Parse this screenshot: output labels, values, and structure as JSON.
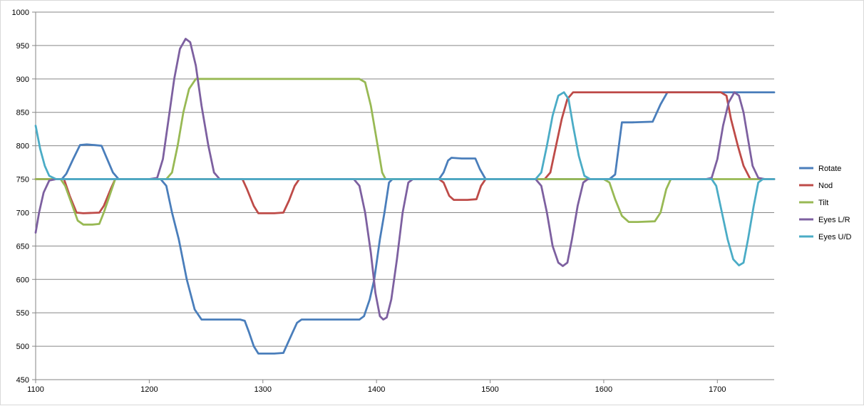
{
  "chart_data": {
    "type": "line",
    "title": "",
    "xlabel": "",
    "ylabel": "",
    "xlim": [
      1100,
      1750
    ],
    "ylim": [
      450,
      1000
    ],
    "x_ticks": [
      1100,
      1200,
      1300,
      1400,
      1500,
      1600,
      1700
    ],
    "y_ticks": [
      450,
      500,
      550,
      600,
      650,
      700,
      750,
      800,
      850,
      900,
      950,
      1000
    ],
    "grid": "horizontal",
    "legend_position": "right",
    "series": [
      {
        "name": "Rotate",
        "color": "#4a7ebb",
        "points": [
          [
            1100,
            750
          ],
          [
            1123,
            750
          ],
          [
            1127,
            758
          ],
          [
            1133,
            780
          ],
          [
            1139,
            801
          ],
          [
            1145,
            802
          ],
          [
            1152,
            801
          ],
          [
            1158,
            800
          ],
          [
            1163,
            780
          ],
          [
            1168,
            760
          ],
          [
            1173,
            750
          ],
          [
            1210,
            750
          ],
          [
            1215,
            740
          ],
          [
            1220,
            700
          ],
          [
            1226,
            660
          ],
          [
            1233,
            600
          ],
          [
            1240,
            555
          ],
          [
            1246,
            540
          ],
          [
            1258,
            540
          ],
          [
            1280,
            540
          ],
          [
            1284,
            538
          ],
          [
            1288,
            520
          ],
          [
            1292,
            500
          ],
          [
            1296,
            489
          ],
          [
            1304,
            489
          ],
          [
            1310,
            489
          ],
          [
            1318,
            490
          ],
          [
            1322,
            505
          ],
          [
            1326,
            520
          ],
          [
            1330,
            535
          ],
          [
            1334,
            540
          ],
          [
            1385,
            540
          ],
          [
            1389,
            545
          ],
          [
            1394,
            570
          ],
          [
            1398,
            600
          ],
          [
            1403,
            660
          ],
          [
            1407,
            700
          ],
          [
            1411,
            745
          ],
          [
            1414,
            750
          ],
          [
            1455,
            750
          ],
          [
            1459,
            760
          ],
          [
            1463,
            778
          ],
          [
            1466,
            782
          ],
          [
            1475,
            781
          ],
          [
            1487,
            781
          ],
          [
            1491,
            765
          ],
          [
            1496,
            750
          ],
          [
            1605,
            750
          ],
          [
            1610,
            757
          ],
          [
            1616,
            835
          ],
          [
            1625,
            835
          ],
          [
            1643,
            836
          ],
          [
            1650,
            862
          ],
          [
            1656,
            880
          ],
          [
            1690,
            880
          ],
          [
            1750,
            880
          ]
        ]
      },
      {
        "name": "Nod",
        "color": "#be4b48",
        "points": [
          [
            1100,
            750
          ],
          [
            1125,
            750
          ],
          [
            1130,
            725
          ],
          [
            1136,
            700
          ],
          [
            1142,
            699
          ],
          [
            1156,
            700
          ],
          [
            1160,
            710
          ],
          [
            1166,
            735
          ],
          [
            1170,
            750
          ],
          [
            1282,
            750
          ],
          [
            1286,
            735
          ],
          [
            1292,
            710
          ],
          [
            1296,
            699
          ],
          [
            1310,
            699
          ],
          [
            1318,
            700
          ],
          [
            1323,
            718
          ],
          [
            1328,
            740
          ],
          [
            1332,
            750
          ],
          [
            1455,
            750
          ],
          [
            1459,
            745
          ],
          [
            1464,
            725
          ],
          [
            1468,
            719
          ],
          [
            1480,
            719
          ],
          [
            1488,
            720
          ],
          [
            1492,
            740
          ],
          [
            1496,
            750
          ],
          [
            1548,
            750
          ],
          [
            1553,
            760
          ],
          [
            1558,
            800
          ],
          [
            1563,
            840
          ],
          [
            1568,
            870
          ],
          [
            1573,
            880
          ],
          [
            1600,
            880
          ],
          [
            1650,
            880
          ],
          [
            1703,
            880
          ],
          [
            1708,
            875
          ],
          [
            1712,
            840
          ],
          [
            1718,
            800
          ],
          [
            1723,
            770
          ],
          [
            1729,
            750
          ],
          [
            1750,
            750
          ]
        ]
      },
      {
        "name": "Tilt",
        "color": "#98b954",
        "points": [
          [
            1100,
            750
          ],
          [
            1122,
            750
          ],
          [
            1126,
            740
          ],
          [
            1132,
            712
          ],
          [
            1137,
            688
          ],
          [
            1142,
            682
          ],
          [
            1150,
            682
          ],
          [
            1156,
            683
          ],
          [
            1160,
            700
          ],
          [
            1165,
            725
          ],
          [
            1170,
            750
          ],
          [
            1215,
            750
          ],
          [
            1220,
            760
          ],
          [
            1225,
            800
          ],
          [
            1230,
            850
          ],
          [
            1235,
            885
          ],
          [
            1241,
            900
          ],
          [
            1300,
            900
          ],
          [
            1385,
            900
          ],
          [
            1390,
            895
          ],
          [
            1395,
            860
          ],
          [
            1400,
            810
          ],
          [
            1405,
            760
          ],
          [
            1408,
            750
          ],
          [
            1590,
            750
          ],
          [
            1600,
            750
          ],
          [
            1605,
            745
          ],
          [
            1610,
            720
          ],
          [
            1616,
            695
          ],
          [
            1622,
            686
          ],
          [
            1630,
            686
          ],
          [
            1645,
            687
          ],
          [
            1650,
            700
          ],
          [
            1655,
            735
          ],
          [
            1659,
            750
          ],
          [
            1750,
            750
          ]
        ]
      },
      {
        "name": "Eyes L/R",
        "color": "#7d60a0",
        "points": [
          [
            1100,
            670
          ],
          [
            1103,
            700
          ],
          [
            1107,
            730
          ],
          [
            1112,
            748
          ],
          [
            1118,
            750
          ],
          [
            1200,
            750
          ],
          [
            1207,
            752
          ],
          [
            1212,
            780
          ],
          [
            1217,
            840
          ],
          [
            1222,
            900
          ],
          [
            1227,
            945
          ],
          [
            1232,
            960
          ],
          [
            1236,
            955
          ],
          [
            1241,
            920
          ],
          [
            1246,
            860
          ],
          [
            1252,
            800
          ],
          [
            1257,
            760
          ],
          [
            1262,
            750
          ],
          [
            1280,
            750
          ],
          [
            1350,
            750
          ],
          [
            1380,
            750
          ],
          [
            1385,
            740
          ],
          [
            1390,
            700
          ],
          [
            1395,
            640
          ],
          [
            1399,
            580
          ],
          [
            1403,
            545
          ],
          [
            1406,
            540
          ],
          [
            1409,
            543
          ],
          [
            1413,
            570
          ],
          [
            1418,
            630
          ],
          [
            1423,
            700
          ],
          [
            1428,
            745
          ],
          [
            1432,
            750
          ],
          [
            1540,
            750
          ],
          [
            1545,
            740
          ],
          [
            1550,
            700
          ],
          [
            1555,
            650
          ],
          [
            1560,
            625
          ],
          [
            1564,
            620
          ],
          [
            1568,
            625
          ],
          [
            1572,
            660
          ],
          [
            1577,
            710
          ],
          [
            1582,
            745
          ],
          [
            1586,
            750
          ],
          [
            1690,
            750
          ],
          [
            1695,
            752
          ],
          [
            1700,
            780
          ],
          [
            1705,
            830
          ],
          [
            1710,
            865
          ],
          [
            1715,
            880
          ],
          [
            1719,
            875
          ],
          [
            1723,
            850
          ],
          [
            1727,
            810
          ],
          [
            1731,
            770
          ],
          [
            1736,
            752
          ],
          [
            1742,
            750
          ],
          [
            1750,
            750
          ]
        ]
      },
      {
        "name": "Eyes U/D",
        "color": "#4bacc6",
        "points": [
          [
            1100,
            830
          ],
          [
            1104,
            795
          ],
          [
            1108,
            770
          ],
          [
            1112,
            755
          ],
          [
            1118,
            750
          ],
          [
            1540,
            750
          ],
          [
            1545,
            760
          ],
          [
            1550,
            800
          ],
          [
            1555,
            845
          ],
          [
            1560,
            875
          ],
          [
            1565,
            880
          ],
          [
            1569,
            870
          ],
          [
            1573,
            830
          ],
          [
            1578,
            785
          ],
          [
            1583,
            755
          ],
          [
            1588,
            750
          ],
          [
            1695,
            750
          ],
          [
            1699,
            740
          ],
          [
            1704,
            700
          ],
          [
            1709,
            660
          ],
          [
            1714,
            630
          ],
          [
            1719,
            621
          ],
          [
            1723,
            625
          ],
          [
            1727,
            660
          ],
          [
            1732,
            710
          ],
          [
            1736,
            745
          ],
          [
            1740,
            750
          ],
          [
            1750,
            750
          ]
        ]
      }
    ]
  }
}
